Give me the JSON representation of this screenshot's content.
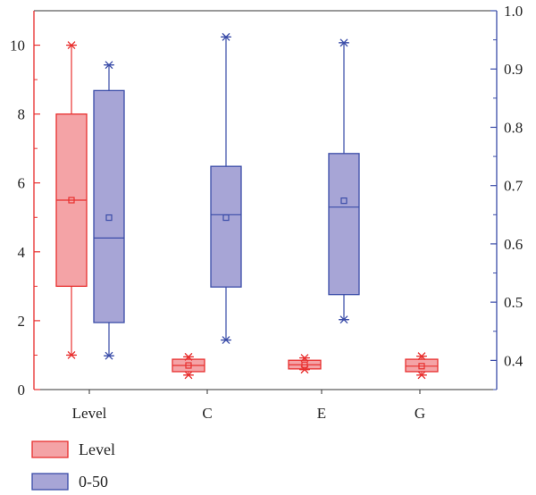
{
  "chart_data": {
    "type": "box",
    "categories": [
      "Level",
      "C",
      "E",
      "G"
    ],
    "left_axis": {
      "ylim": [
        0,
        11
      ],
      "ticks": [
        0,
        2,
        4,
        6,
        8,
        10
      ],
      "color": "#e8302f"
    },
    "right_axis": {
      "ylim": [
        0.35,
        1.0
      ],
      "ticks": [
        0.4,
        0.5,
        0.6,
        0.7,
        0.8,
        0.9,
        1.0
      ],
      "color": "#3a4ca8"
    },
    "series": [
      {
        "name": "Level",
        "axis": "left",
        "fill": "#f4a3a6",
        "stroke": "#e8302f",
        "boxes": [
          {
            "category": "Level",
            "min": 1.0,
            "q1": 3.0,
            "median": 5.5,
            "mean": 5.5,
            "q3": 8.0,
            "max": 10.0
          },
          {
            "category": "C",
            "min": 0.42,
            "q1": 0.52,
            "median": 0.7,
            "mean": 0.7,
            "q3": 0.88,
            "max": 0.95
          },
          {
            "category": "E",
            "min": 0.58,
            "q1": 0.6,
            "median": 0.72,
            "mean": 0.72,
            "q3": 0.85,
            "max": 0.92
          },
          {
            "category": "G",
            "min": 0.42,
            "q1": 0.52,
            "median": 0.68,
            "mean": 0.68,
            "q3": 0.88,
            "max": 0.97
          }
        ]
      },
      {
        "name": "0-50",
        "axis": "right",
        "fill": "#a7a5d6",
        "stroke": "#3a4ca8",
        "boxes": [
          {
            "category": "Level",
            "min": 0.408,
            "q1": 0.465,
            "median": 0.61,
            "mean": 0.645,
            "q3": 0.863,
            "max": 0.907
          },
          {
            "category": "C",
            "min": 0.435,
            "q1": 0.526,
            "median": 0.65,
            "mean": 0.645,
            "q3": 0.733,
            "max": 0.955
          },
          {
            "category": "E",
            "min": 0.47,
            "q1": 0.513,
            "median": 0.663,
            "mean": 0.674,
            "q3": 0.755,
            "max": 0.945
          }
        ]
      }
    ],
    "legend": {
      "placement": "bottom-left",
      "entries": [
        "Level",
        "0-50"
      ]
    }
  }
}
